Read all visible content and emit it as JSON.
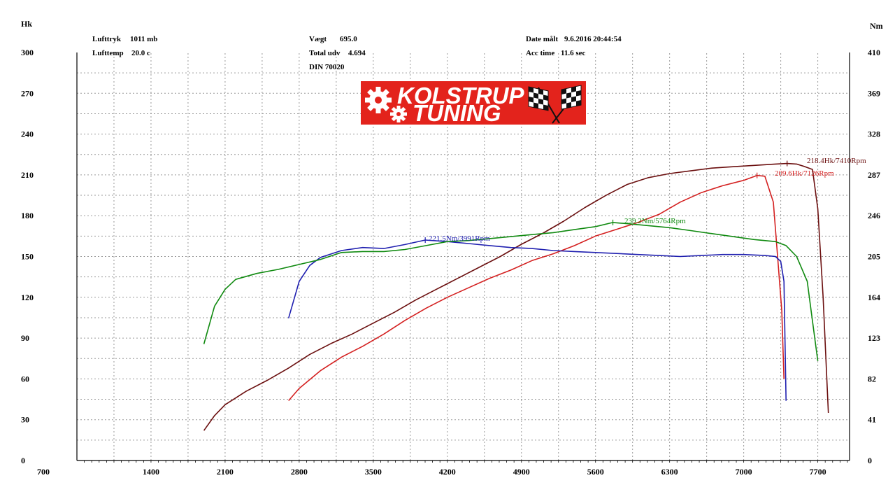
{
  "info": {
    "lufttryk_label": "Lufttryk",
    "lufttryk_value": "1011 mb",
    "lufttemp_label": "Lufttemp",
    "lufttemp_value": "20.0 c",
    "vaegt_label": "Vægt",
    "vaegt_value": "695.0",
    "total_label": "Total udv",
    "total_value": "4.694",
    "din": "DIN 70020",
    "date_label": "Date målt",
    "date_value": "9.6.2016 20:44:54",
    "acc_label": "Acc time",
    "acc_value": "11.6 sec"
  },
  "logo": {
    "line1": "KOLSTRUP",
    "line2": "TUNING",
    "bg_color": "#e3231c",
    "icon": "gear-icon, checkered-flag-icon"
  },
  "chart_data": {
    "type": "line",
    "grid": true,
    "xlim": [
      700,
      8000
    ],
    "x_ticks": [
      "700",
      "1400",
      "2100",
      "2800",
      "3500",
      "4200",
      "4900",
      "5600",
      "6300",
      "7000",
      "7700"
    ],
    "left_axis": {
      "label": "Hk",
      "ylim": [
        0,
        300
      ],
      "ticks": [
        "0",
        "30",
        "60",
        "90",
        "120",
        "150",
        "180",
        "210",
        "240",
        "270",
        "300"
      ]
    },
    "right_axis": {
      "label": "Nm",
      "ylim": [
        0,
        410
      ],
      "ticks": [
        "0",
        "41",
        "82",
        "123",
        "164",
        "205",
        "246",
        "287",
        "328",
        "369",
        "410"
      ]
    },
    "series": [
      {
        "axis": "left",
        "color": "#6b0f0f",
        "x": [
          1900,
          2000,
          2100,
          2300,
          2500,
          2700,
          2900,
          3100,
          3300,
          3500,
          3700,
          3900,
          4100,
          4300,
          4500,
          4700,
          4900,
          5100,
          5300,
          5500,
          5700,
          5900,
          6100,
          6300,
          6500,
          6700,
          6900,
          7100,
          7300,
          7410,
          7500,
          7580,
          7650,
          7700,
          7750,
          7800
        ],
        "y": [
          22,
          33,
          41,
          51,
          59,
          68,
          78,
          86,
          93,
          101,
          109,
          118,
          126,
          134,
          142,
          150,
          159,
          167,
          176,
          186,
          195,
          203,
          208,
          211,
          213,
          215,
          216,
          217,
          218,
          218.4,
          218,
          216,
          214,
          185,
          120,
          35
        ]
      },
      {
        "axis": "left",
        "color": "#d42020",
        "x": [
          2700,
          2800,
          3000,
          3200,
          3400,
          3600,
          3800,
          4000,
          4200,
          4400,
          4600,
          4800,
          5000,
          5200,
          5400,
          5600,
          5800,
          6000,
          6200,
          6400,
          6600,
          6800,
          7000,
          7126,
          7200,
          7280,
          7330,
          7360,
          7380
        ],
        "y": [
          44,
          53,
          66,
          76,
          84,
          93,
          103,
          112,
          120,
          127,
          134,
          140,
          147,
          152,
          158,
          165,
          170,
          175,
          181,
          190,
          197,
          202,
          206,
          209.6,
          209,
          190,
          140,
          110,
          60
        ]
      },
      {
        "axis": "right",
        "color": "#2020b0",
        "x": [
          2700,
          2800,
          2900,
          3000,
          3200,
          3400,
          3600,
          3800,
          3991,
          4200,
          4400,
          4600,
          4800,
          5000,
          5200,
          5400,
          5600,
          5800,
          6000,
          6200,
          6400,
          6600,
          6800,
          7000,
          7200,
          7300,
          7350,
          7380,
          7400
        ],
        "y": [
          143,
          180,
          196,
          204,
          211,
          214,
          213,
          217,
          221.5,
          220,
          218,
          216,
          214,
          213,
          211,
          210,
          209,
          208,
          207,
          206,
          205,
          206,
          207,
          207,
          206,
          205,
          200,
          180,
          60
        ]
      },
      {
        "axis": "right",
        "color": "#108a10",
        "x": [
          1900,
          2000,
          2100,
          2200,
          2400,
          2600,
          2800,
          3000,
          3200,
          3400,
          3600,
          3800,
          4000,
          4200,
          4400,
          4600,
          4800,
          5000,
          5200,
          5400,
          5600,
          5764,
          5900,
          6100,
          6300,
          6500,
          6700,
          6900,
          7100,
          7300,
          7400,
          7500,
          7600,
          7650,
          7700
        ],
        "y": [
          117,
          155,
          172,
          182,
          188,
          192,
          197,
          202,
          209,
          210,
          210,
          212,
          216,
          220,
          221,
          223,
          225,
          227,
          229,
          232,
          235,
          239.2,
          238,
          236,
          234,
          231,
          228,
          225,
          222,
          220,
          216,
          205,
          180,
          140,
          100
        ]
      }
    ],
    "annotations": [
      {
        "text": "218.4Hk/7410Rpm",
        "color": "#6b0f0f"
      },
      {
        "text": "209.6Hk/7126Rpm",
        "color": "#d42020"
      },
      {
        "text": "239.2Nm/5764Rpm",
        "color": "#108a10"
      },
      {
        "text": "221.5Nm/3991Rpm",
        "color": "#2020b0"
      }
    ]
  }
}
